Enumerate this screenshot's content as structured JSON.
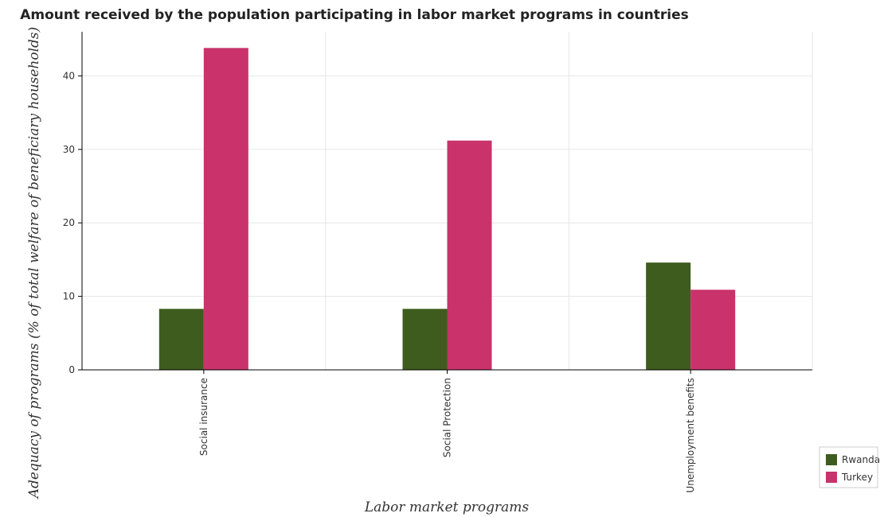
{
  "chart_data": {
    "type": "bar",
    "title": "Amount received by the population participating in labor market programs in countries",
    "xlabel": "Labor market programs",
    "ylabel": "Adequacy of programs (% of total welfare of beneficiary households)",
    "categories": [
      "Social insurance",
      "Social Protection",
      "Unemployment benefits"
    ],
    "series": [
      {
        "name": "Rwanda",
        "values": [
          8.3,
          8.3,
          14.6
        ],
        "color": "#3d5c1e"
      },
      {
        "name": "Turkey",
        "values": [
          43.8,
          31.2,
          10.9
        ],
        "color": "#c9326a"
      }
    ],
    "ylim": [
      0,
      46
    ],
    "yticks": [
      0,
      10,
      20,
      30,
      40
    ],
    "grid": true,
    "legend_position": "bottom-right"
  }
}
